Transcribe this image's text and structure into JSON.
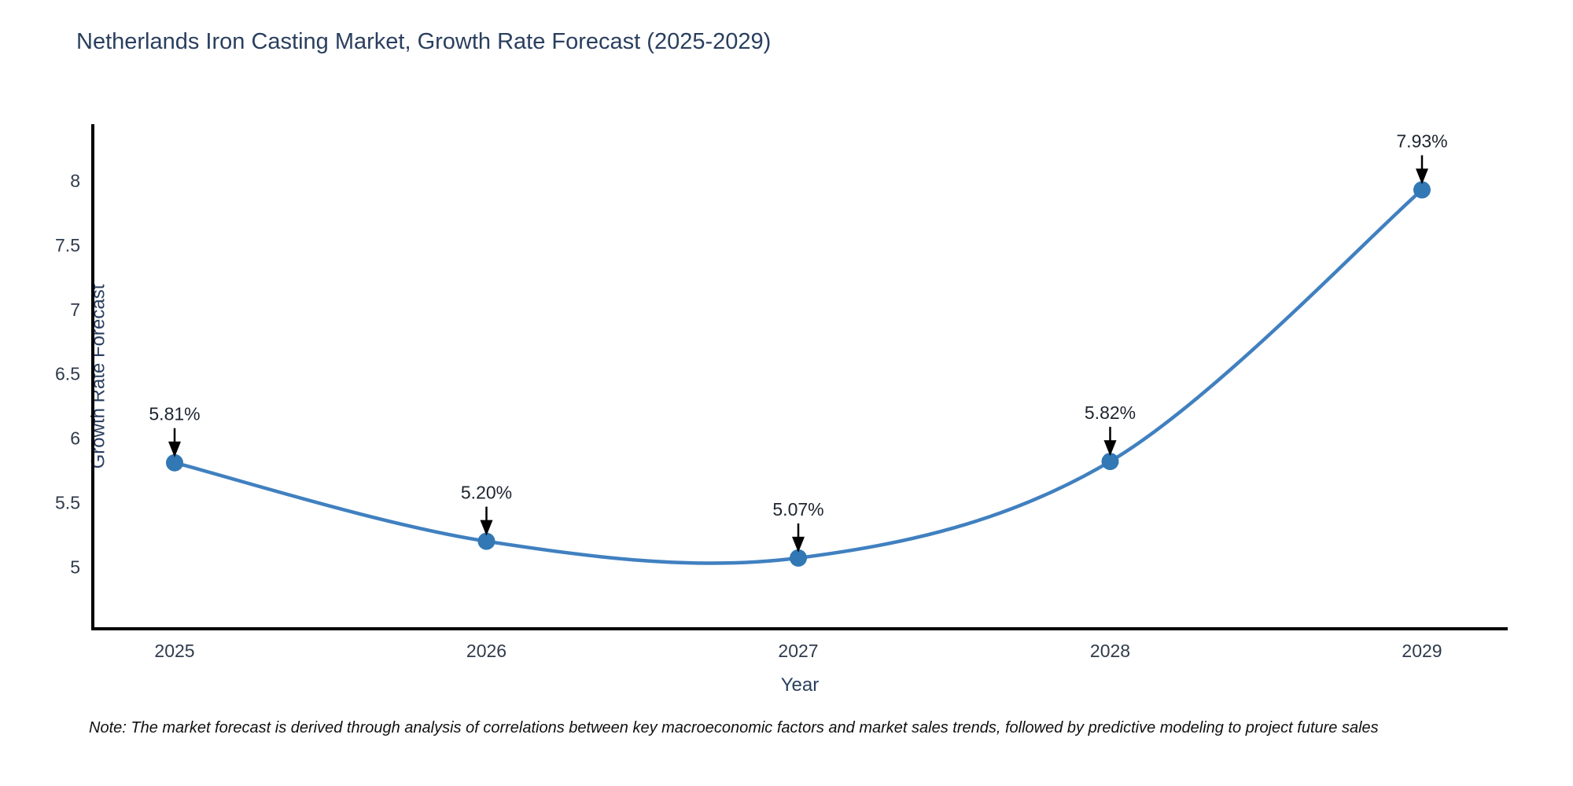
{
  "chart_data": {
    "type": "line",
    "title": "Netherlands Iron Casting Market, Growth Rate Forecast (2025-2029)",
    "xlabel": "Year",
    "ylabel": "Growth Rate Forecast",
    "categories": [
      "2025",
      "2026",
      "2027",
      "2028",
      "2029"
    ],
    "series": [
      {
        "name": "Growth Rate Forecast",
        "values": [
          5.81,
          5.2,
          5.07,
          5.82,
          7.93
        ],
        "point_labels": [
          "5.81%",
          "5.20%",
          "5.07%",
          "5.82%",
          "7.93%"
        ]
      }
    ],
    "yticks": [
      5,
      5.5,
      6,
      6.5,
      7,
      7.5,
      8
    ],
    "ylim": [
      4.52,
      8.44
    ],
    "grid": false,
    "legend_position": "none",
    "line_shape": "spline",
    "annotation_style": "arrow-down-to-point",
    "colors": {
      "line": "#4080c0",
      "marker": "#3178b4",
      "axis": "#000000",
      "title": "#2a3f5f",
      "tick": "#2f3b4c",
      "annotation_text": "#1c2430",
      "annotation_arrow": "#000000",
      "background": "#ffffff"
    }
  },
  "note": "Note: The market forecast is derived through analysis of correlations between key macroeconomic factors and market sales trends, followed by predictive modeling to project future sales"
}
